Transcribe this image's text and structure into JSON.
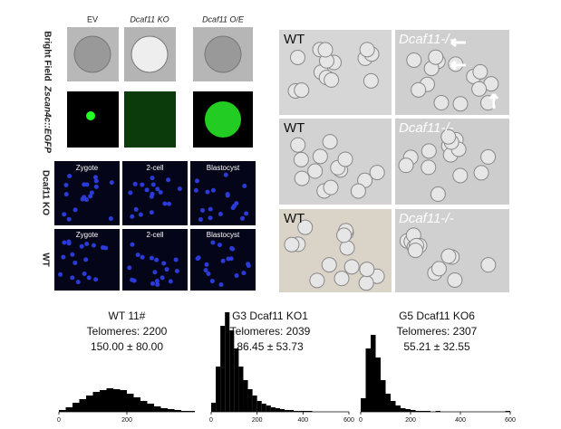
{
  "left_panel": {
    "columns": [
      "EV",
      "Dcaf11 KO",
      "Dcaf11 O/E"
    ],
    "row_labels": [
      "Bright Field",
      "Zscan4c::EGFP"
    ],
    "embryo_columns": [
      "Zygote",
      "2-cell",
      "Blastocyst"
    ],
    "embryo_rows": [
      "Dcaf11 KO",
      "WT"
    ]
  },
  "right_panel": {
    "columns": [
      "WT",
      "Dcaf11-/-"
    ]
  },
  "chart_data": [
    {
      "type": "histogram",
      "title": [
        "WT 11#",
        "Telomeres: 2200",
        "150.00 ± 80.00"
      ],
      "bins": [
        0,
        20,
        40,
        60,
        80,
        100,
        120,
        140,
        160,
        180,
        200,
        220,
        240,
        260,
        280,
        300,
        320,
        340,
        360,
        380,
        400
      ],
      "counts": [
        2,
        5,
        10,
        14,
        18,
        22,
        24,
        26,
        25,
        24,
        20,
        16,
        12,
        9,
        6,
        4,
        3,
        2,
        1,
        1
      ],
      "color": "#000000",
      "xlim": [
        0,
        400
      ],
      "ylim": [
        0,
        120
      ],
      "xticks": [
        0,
        200
      ]
    },
    {
      "type": "histogram",
      "title": [
        "G3 Dcaf11 KO1",
        "Telomeres: 2039",
        "86.45 ± 53.73"
      ],
      "bins": [
        0,
        20,
        40,
        60,
        80,
        100,
        120,
        140,
        160,
        180,
        200,
        220,
        240,
        260,
        280,
        300,
        320,
        340,
        360,
        380,
        400,
        420,
        440,
        460,
        480,
        500,
        520,
        540,
        560,
        580,
        600
      ],
      "counts": [
        10,
        50,
        95,
        110,
        90,
        70,
        50,
        35,
        25,
        18,
        12,
        9,
        7,
        5,
        4,
        3,
        2,
        2,
        1,
        1,
        1,
        1,
        0,
        0,
        0,
        0,
        0,
        0,
        0,
        0
      ],
      "color": "#000000",
      "xlim": [
        0,
        600
      ],
      "ylim": [
        0,
        120
      ],
      "xticks": [
        0,
        200,
        400,
        600
      ]
    },
    {
      "type": "histogram",
      "title": [
        "G5 Dcaf11 KO6",
        "Telomeres: 2307",
        "55.21 ± 32.55"
      ],
      "bins": [
        0,
        20,
        40,
        60,
        80,
        100,
        120,
        140,
        160,
        180,
        200,
        220,
        240,
        260,
        280,
        300,
        320,
        340,
        360,
        380,
        400,
        420,
        440,
        460,
        480,
        500,
        520,
        540,
        560,
        580,
        600
      ],
      "counts": [
        15,
        70,
        85,
        60,
        35,
        20,
        12,
        7,
        4,
        3,
        2,
        1,
        1,
        1,
        0,
        1,
        0,
        0,
        0,
        0,
        0,
        0,
        0,
        0,
        0,
        0,
        0,
        0,
        0,
        1
      ],
      "color": "#000000",
      "xlim": [
        0,
        600
      ],
      "ylim": [
        0,
        120
      ],
      "xticks": [
        0,
        200,
        400,
        600
      ]
    }
  ]
}
